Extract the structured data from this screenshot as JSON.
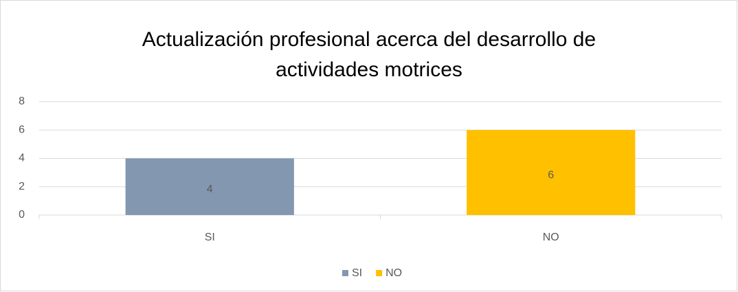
{
  "chart_data": {
    "type": "bar",
    "title": "Actualización profesional acerca del desarrollo de actividades motrices",
    "categories": [
      "SI",
      "NO"
    ],
    "values": [
      4,
      6
    ],
    "colors": [
      "#8497b0",
      "#ffc000"
    ],
    "ylim": [
      0,
      8
    ],
    "yticks": [
      0,
      2,
      4,
      6,
      8
    ],
    "grid": true,
    "legend": "bottom"
  }
}
